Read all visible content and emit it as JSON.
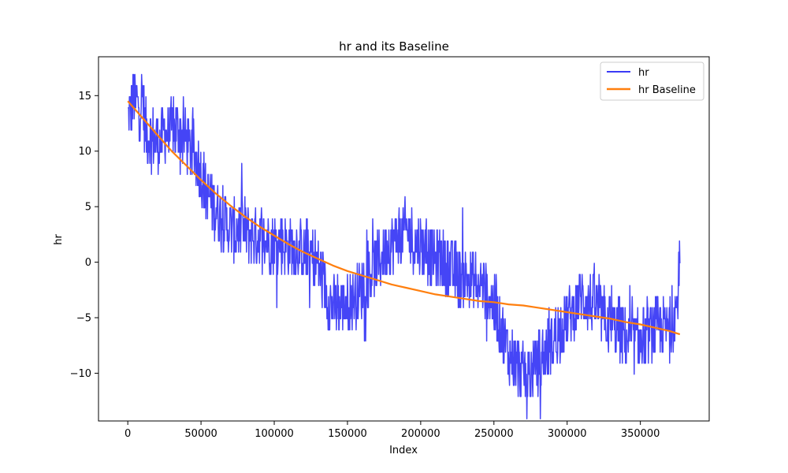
{
  "chart_data": {
    "type": "line",
    "title": "hr and its Baseline",
    "xlabel": "Index",
    "ylabel": "hr",
    "xlim": [
      -20000,
      397000
    ],
    "ylim": [
      -14.3,
      18.5
    ],
    "xticks": [
      0,
      50000,
      100000,
      150000,
      200000,
      250000,
      300000,
      350000
    ],
    "yticks": [
      -10,
      -5,
      0,
      5,
      10,
      15
    ],
    "xtick_labels": [
      "0",
      "50000",
      "100000",
      "150000",
      "200000",
      "250000",
      "300000",
      "350000"
    ],
    "ytick_labels": [
      "−10",
      "−5",
      "0",
      "5",
      "10",
      "15"
    ],
    "grid": false,
    "legend_position": "top-right",
    "series": [
      {
        "name": "hr",
        "color": "#3b3bf5",
        "style": "noisy-signal",
        "x": [
          0,
          2000,
          4000,
          6000,
          8000,
          10000,
          12000,
          15000,
          20000,
          25000,
          30000,
          35000,
          40000,
          45000,
          50000,
          55000,
          60000,
          65000,
          70000,
          75000,
          80000,
          85000,
          90000,
          95000,
          100000,
          105000,
          110000,
          115000,
          120000,
          125000,
          130000,
          135000,
          140000,
          145000,
          150000,
          155000,
          160000,
          165000,
          170000,
          175000,
          180000,
          185000,
          190000,
          195000,
          200000,
          205000,
          210000,
          215000,
          220000,
          225000,
          230000,
          235000,
          240000,
          245000,
          250000,
          255000,
          260000,
          265000,
          270000,
          275000,
          280000,
          285000,
          290000,
          295000,
          300000,
          305000,
          310000,
          315000,
          320000,
          325000,
          330000,
          335000,
          340000,
          345000,
          350000,
          355000,
          360000,
          365000,
          370000,
          375000,
          377000
        ],
        "values": [
          13,
          14,
          15,
          14.5,
          14,
          15,
          12,
          11.5,
          11,
          11.5,
          12,
          12,
          11,
          10,
          8,
          6,
          5,
          4,
          3,
          3,
          3,
          2.5,
          2.5,
          2,
          2,
          2,
          1.5,
          1.5,
          1,
          1,
          0,
          -2.5,
          -4,
          -4,
          -3.5,
          -3,
          -2,
          -1,
          0,
          1,
          2,
          2.5,
          3,
          2,
          1.5,
          1,
          0.5,
          0,
          -0.5,
          -1,
          -1.5,
          -1.5,
          -2,
          -2.5,
          -4,
          -6,
          -8,
          -9,
          -10,
          -10,
          -9,
          -8,
          -7,
          -6,
          -5,
          -4,
          -3,
          -3.5,
          -4,
          -5,
          -5.5,
          -6,
          -6.5,
          -7,
          -7,
          -6.5,
          -6,
          -6,
          -6,
          -4,
          0
        ]
      },
      {
        "name": "hr Baseline",
        "color": "#ff7f0e",
        "style": "smooth",
        "x": [
          0,
          10000,
          20000,
          30000,
          40000,
          50000,
          60000,
          70000,
          80000,
          90000,
          100000,
          110000,
          120000,
          130000,
          140000,
          150000,
          160000,
          170000,
          180000,
          190000,
          200000,
          210000,
          220000,
          230000,
          240000,
          250000,
          260000,
          270000,
          280000,
          290000,
          300000,
          310000,
          320000,
          330000,
          340000,
          350000,
          360000,
          370000,
          377000
        ],
        "values": [
          14.5,
          13.0,
          11.5,
          10.0,
          8.7,
          7.4,
          6.2,
          5.1,
          4.1,
          3.2,
          2.4,
          1.6,
          0.9,
          0.3,
          -0.3,
          -0.8,
          -1.2,
          -1.6,
          -2.0,
          -2.3,
          -2.6,
          -2.9,
          -3.1,
          -3.3,
          -3.5,
          -3.6,
          -3.8,
          -3.9,
          -4.1,
          -4.3,
          -4.5,
          -4.7,
          -4.9,
          -5.1,
          -5.4,
          -5.6,
          -5.9,
          -6.2,
          -6.5
        ]
      }
    ]
  }
}
